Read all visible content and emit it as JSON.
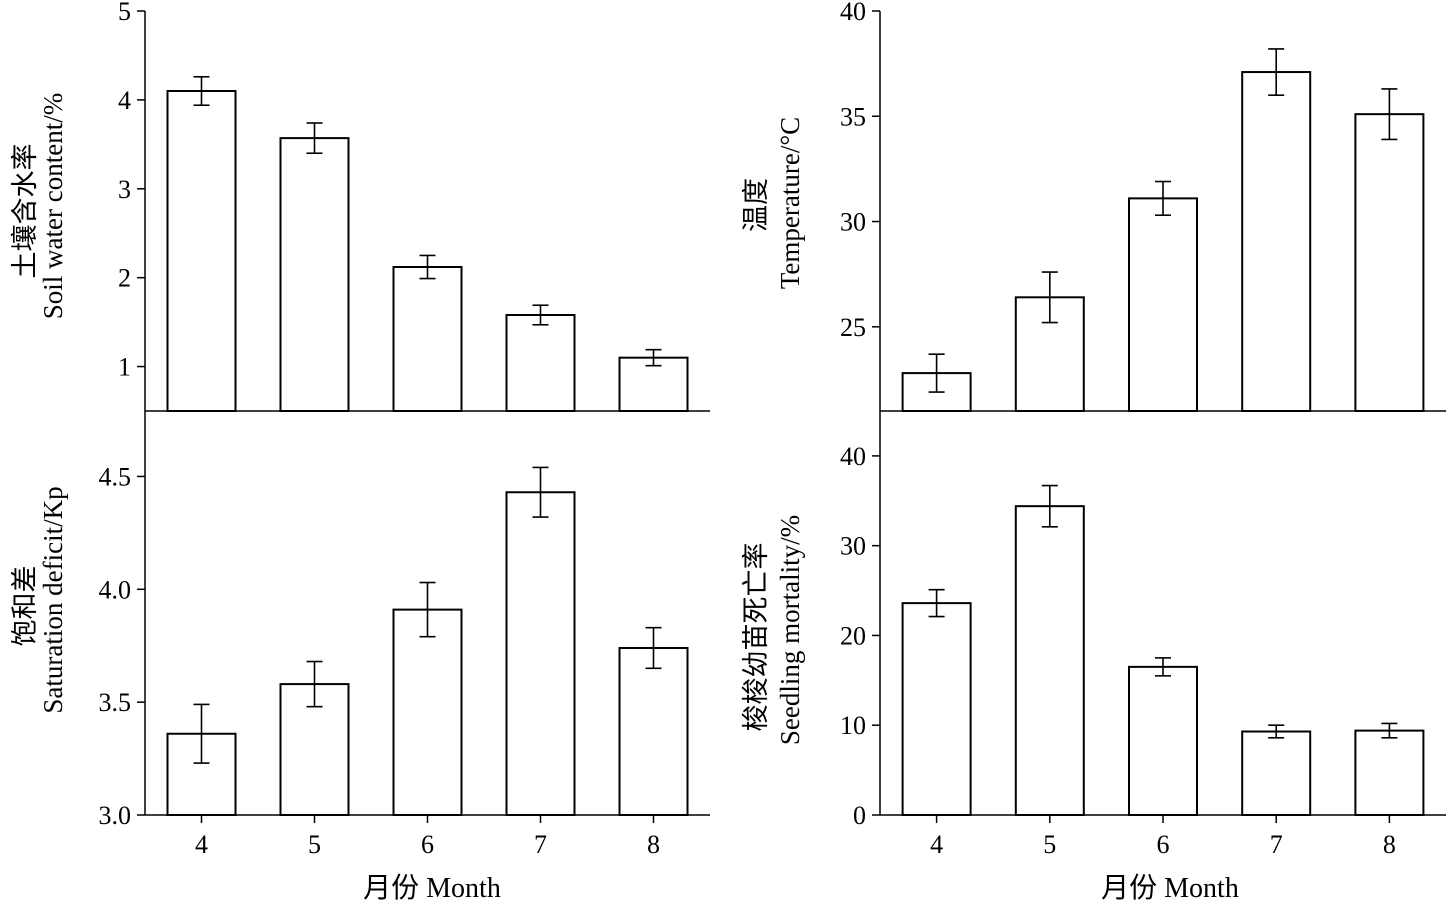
{
  "x_axis": {
    "categories": [
      "4",
      "5",
      "6",
      "7",
      "8"
    ],
    "title": "月份 Month"
  },
  "chart_data": [
    {
      "id": "soil",
      "type": "bar",
      "categories": [
        "4",
        "5",
        "6",
        "7",
        "8"
      ],
      "values": [
        4.1,
        3.57,
        2.12,
        1.58,
        1.1
      ],
      "errors": [
        0.16,
        0.17,
        0.13,
        0.11,
        0.09
      ],
      "ylabel_cn": "土壤含水率",
      "ylabel_en": "Soil water content/%",
      "ylim": [
        0.5,
        5
      ],
      "yticks": [
        1,
        2,
        3,
        4,
        5
      ],
      "ytick_labels": [
        "1",
        "2",
        "3",
        "4",
        "5"
      ]
    },
    {
      "id": "temperature",
      "type": "bar",
      "categories": [
        "4",
        "5",
        "6",
        "7",
        "8"
      ],
      "values": [
        22.8,
        26.4,
        31.1,
        37.1,
        35.1
      ],
      "errors": [
        0.9,
        1.2,
        0.8,
        1.1,
        1.2
      ],
      "ylabel_cn": "温度",
      "ylabel_en": "Temperature/°C",
      "ylim": [
        21,
        40
      ],
      "yticks": [
        25,
        30,
        35,
        40
      ],
      "ytick_labels": [
        "25",
        "30",
        "35",
        "40"
      ]
    },
    {
      "id": "saturation",
      "type": "bar",
      "categories": [
        "4",
        "5",
        "6",
        "7",
        "8"
      ],
      "values": [
        3.36,
        3.58,
        3.91,
        4.43,
        3.74
      ],
      "errors": [
        0.13,
        0.1,
        0.12,
        0.11,
        0.09
      ],
      "ylabel_cn": "饱和差",
      "ylabel_en": "Saturation deficit/Kp",
      "ylim": [
        3.0,
        4.79
      ],
      "yticks": [
        3.0,
        3.5,
        4.0,
        4.5
      ],
      "ytick_labels": [
        "3.0",
        "3.5",
        "4.0",
        "4.5"
      ]
    },
    {
      "id": "mortality",
      "type": "bar",
      "categories": [
        "4",
        "5",
        "6",
        "7",
        "8"
      ],
      "values": [
        23.6,
        34.4,
        16.5,
        9.3,
        9.4
      ],
      "errors": [
        1.5,
        2.3,
        1.0,
        0.7,
        0.8
      ],
      "ylabel_cn": "梭梭幼苗死亡率",
      "ylabel_en": "Seedling mortality/%",
      "ylim": [
        0,
        45
      ],
      "yticks": [
        0,
        10,
        20,
        30,
        40
      ],
      "ytick_labels": [
        "0",
        "10",
        "20",
        "30",
        "40"
      ]
    }
  ]
}
